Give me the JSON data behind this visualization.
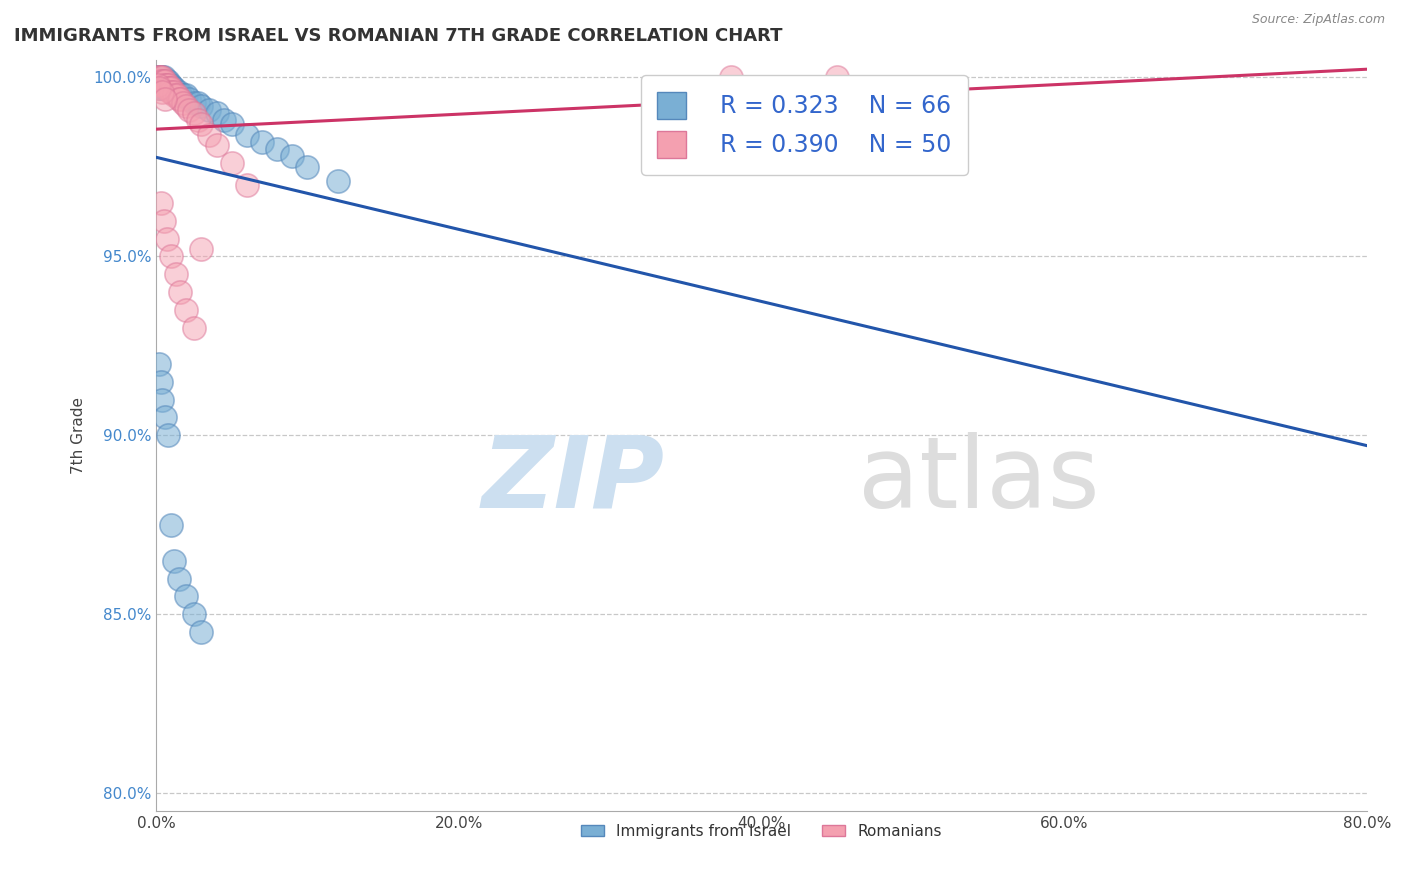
{
  "title": "IMMIGRANTS FROM ISRAEL VS ROMANIAN 7TH GRADE CORRELATION CHART",
  "source_text": "Source: ZipAtlas.com",
  "xlabel": "",
  "ylabel": "7th Grade",
  "xlim": [
    0.0,
    0.8
  ],
  "ylim": [
    0.795,
    1.005
  ],
  "xtick_labels": [
    "0.0%",
    "20.0%",
    "40.0%",
    "60.0%",
    "80.0%"
  ],
  "xtick_vals": [
    0.0,
    0.2,
    0.4,
    0.6,
    0.8
  ],
  "ytick_labels": [
    "80.0%",
    "85.0%",
    "90.0%",
    "95.0%",
    "100.0%"
  ],
  "ytick_vals": [
    0.8,
    0.85,
    0.9,
    0.95,
    1.0
  ],
  "israel_color": "#7AAFD4",
  "romanian_color": "#F4A0B0",
  "israel_edge_color": "#5588BB",
  "romanian_edge_color": "#DD7799",
  "israel_label": "Immigrants from Israel",
  "romanian_label": "Romanians",
  "legend_R1": "R = 0.323",
  "legend_N1": "N = 66",
  "legend_R2": "R = 0.390",
  "legend_N2": "N = 50",
  "israel_trend_color": "#2255AA",
  "romanian_trend_color": "#CC3366",
  "background_color": "#FFFFFF",
  "israel_x": [
    0.001,
    0.001,
    0.001,
    0.002,
    0.002,
    0.002,
    0.002,
    0.003,
    0.003,
    0.003,
    0.003,
    0.004,
    0.004,
    0.004,
    0.005,
    0.005,
    0.005,
    0.005,
    0.006,
    0.006,
    0.006,
    0.007,
    0.007,
    0.007,
    0.008,
    0.008,
    0.008,
    0.009,
    0.009,
    0.01,
    0.01,
    0.011,
    0.011,
    0.012,
    0.012,
    0.013,
    0.014,
    0.015,
    0.016,
    0.018,
    0.02,
    0.022,
    0.025,
    0.028,
    0.03,
    0.035,
    0.04,
    0.045,
    0.05,
    0.06,
    0.07,
    0.08,
    0.09,
    0.1,
    0.12,
    0.002,
    0.003,
    0.004,
    0.006,
    0.008,
    0.01,
    0.012,
    0.015,
    0.02,
    0.025,
    0.03
  ],
  "israel_y": [
    1.0,
    0.999,
    0.998,
    1.0,
    0.999,
    0.998,
    0.997,
    1.0,
    0.999,
    0.998,
    0.997,
    1.0,
    0.999,
    0.998,
    1.0,
    0.999,
    0.998,
    0.997,
    0.999,
    0.998,
    0.997,
    0.999,
    0.998,
    0.997,
    0.999,
    0.998,
    0.997,
    0.998,
    0.997,
    0.998,
    0.997,
    0.997,
    0.996,
    0.997,
    0.996,
    0.996,
    0.996,
    0.996,
    0.995,
    0.995,
    0.995,
    0.994,
    0.993,
    0.993,
    0.992,
    0.991,
    0.99,
    0.988,
    0.987,
    0.984,
    0.982,
    0.98,
    0.978,
    0.975,
    0.971,
    0.92,
    0.915,
    0.91,
    0.905,
    0.9,
    0.875,
    0.865,
    0.86,
    0.855,
    0.85,
    0.845
  ],
  "romanian_x": [
    0.001,
    0.001,
    0.002,
    0.002,
    0.003,
    0.003,
    0.004,
    0.004,
    0.005,
    0.005,
    0.006,
    0.006,
    0.007,
    0.007,
    0.008,
    0.008,
    0.009,
    0.009,
    0.01,
    0.01,
    0.012,
    0.012,
    0.014,
    0.015,
    0.016,
    0.018,
    0.02,
    0.022,
    0.025,
    0.028,
    0.03,
    0.035,
    0.04,
    0.05,
    0.06,
    0.003,
    0.005,
    0.007,
    0.01,
    0.013,
    0.016,
    0.02,
    0.025,
    0.03,
    0.45,
    0.38,
    0.001,
    0.002,
    0.004,
    0.006
  ],
  "romanian_y": [
    1.0,
    0.999,
    1.0,
    0.999,
    1.0,
    0.999,
    1.0,
    0.999,
    0.999,
    0.998,
    0.999,
    0.998,
    0.998,
    0.997,
    0.998,
    0.997,
    0.997,
    0.996,
    0.997,
    0.996,
    0.996,
    0.995,
    0.995,
    0.994,
    0.994,
    0.993,
    0.992,
    0.991,
    0.99,
    0.988,
    0.987,
    0.984,
    0.981,
    0.976,
    0.97,
    0.965,
    0.96,
    0.955,
    0.95,
    0.945,
    0.94,
    0.935,
    0.93,
    0.952,
    1.0,
    1.0,
    0.998,
    0.997,
    0.996,
    0.994
  ]
}
